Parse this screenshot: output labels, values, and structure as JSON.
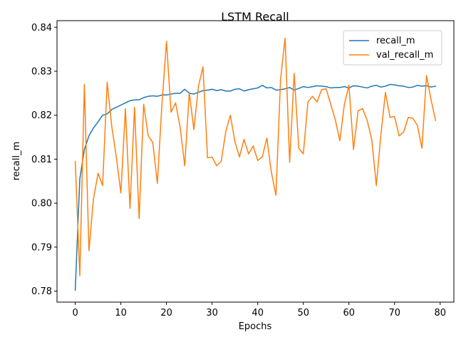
{
  "chart_data": {
    "type": "line",
    "title": "LSTM Recall",
    "xlabel": "Epochs",
    "ylabel": "recall_m",
    "xlim": [
      -4,
      83
    ],
    "ylim": [
      0.7775,
      0.8415
    ],
    "xticks": [
      0,
      10,
      20,
      30,
      40,
      50,
      60,
      70,
      80
    ],
    "yticks": [
      0.78,
      0.79,
      0.8,
      0.81,
      0.82,
      0.83,
      0.84
    ],
    "xtick_labels": [
      "0",
      "10",
      "20",
      "30",
      "40",
      "50",
      "60",
      "70",
      "80"
    ],
    "ytick_labels": [
      "0.78",
      "0.79",
      "0.80",
      "0.81",
      "0.82",
      "0.83",
      "0.84"
    ],
    "grid": false,
    "legend_position": "top-right",
    "series": [
      {
        "name": "recall_m",
        "color": "#1f77b4",
        "x": [
          0,
          1,
          2,
          3,
          4,
          5,
          6,
          7,
          8,
          9,
          10,
          11,
          12,
          13,
          14,
          15,
          16,
          17,
          18,
          19,
          20,
          21,
          22,
          23,
          24,
          25,
          26,
          27,
          28,
          29,
          30,
          31,
          32,
          33,
          34,
          35,
          36,
          37,
          38,
          39,
          40,
          41,
          42,
          43,
          44,
          45,
          46,
          47,
          48,
          49,
          50,
          51,
          52,
          53,
          54,
          55,
          56,
          57,
          58,
          59,
          60,
          61,
          62,
          63,
          64,
          65,
          66,
          67,
          68,
          69,
          70,
          71,
          72,
          73,
          74,
          75,
          76,
          77,
          78,
          79
        ],
        "values": [
          0.7802,
          0.8055,
          0.8122,
          0.8153,
          0.8171,
          0.8185,
          0.82,
          0.8203,
          0.8213,
          0.8218,
          0.8223,
          0.8228,
          0.8233,
          0.8235,
          0.8235,
          0.824,
          0.8243,
          0.8244,
          0.8243,
          0.8246,
          0.8246,
          0.8248,
          0.825,
          0.825,
          0.8259,
          0.825,
          0.8248,
          0.8252,
          0.8256,
          0.8257,
          0.8259,
          0.8256,
          0.8258,
          0.8255,
          0.8255,
          0.8259,
          0.826,
          0.8255,
          0.8258,
          0.826,
          0.8262,
          0.8268,
          0.8262,
          0.8263,
          0.8257,
          0.8258,
          0.826,
          0.8263,
          0.8257,
          0.8261,
          0.8265,
          0.8263,
          0.8265,
          0.8267,
          0.8266,
          0.8265,
          0.8262,
          0.8263,
          0.8263,
          0.8265,
          0.8262,
          0.8267,
          0.8266,
          0.8264,
          0.8262,
          0.8266,
          0.8268,
          0.8264,
          0.8266,
          0.827,
          0.8269,
          0.8267,
          0.8266,
          0.8263,
          0.8264,
          0.8268,
          0.8266,
          0.8267,
          0.8264,
          0.8266
        ]
      },
      {
        "name": "val_recall_m",
        "color": "#ff7f0e",
        "x": [
          0,
          1,
          2,
          3,
          4,
          5,
          6,
          7,
          8,
          9,
          10,
          11,
          12,
          13,
          14,
          15,
          16,
          17,
          18,
          19,
          20,
          21,
          22,
          23,
          24,
          25,
          26,
          27,
          28,
          29,
          30,
          31,
          32,
          33,
          34,
          35,
          36,
          37,
          38,
          39,
          40,
          41,
          42,
          43,
          44,
          45,
          46,
          47,
          48,
          49,
          50,
          51,
          52,
          53,
          54,
          55,
          56,
          57,
          58,
          59,
          60,
          61,
          62,
          63,
          64,
          65,
          66,
          67,
          68,
          69,
          70,
          71,
          72,
          73,
          74,
          75,
          76,
          77,
          78,
          79
        ],
        "values": [
          0.8095,
          0.7835,
          0.827,
          0.7892,
          0.801,
          0.8068,
          0.804,
          0.8275,
          0.8175,
          0.8105,
          0.8023,
          0.8215,
          0.7988,
          0.8218,
          0.7965,
          0.8225,
          0.8153,
          0.8138,
          0.8045,
          0.8225,
          0.8368,
          0.8207,
          0.8228,
          0.8172,
          0.8085,
          0.8252,
          0.8167,
          0.8265,
          0.831,
          0.8103,
          0.8105,
          0.8085,
          0.8095,
          0.8163,
          0.82,
          0.814,
          0.8105,
          0.8145,
          0.8112,
          0.813,
          0.8097,
          0.8105,
          0.8148,
          0.807,
          0.8018,
          0.828,
          0.8375,
          0.8093,
          0.8295,
          0.8125,
          0.8112,
          0.823,
          0.8243,
          0.823,
          0.8258,
          0.826,
          0.8225,
          0.819,
          0.8142,
          0.8225,
          0.8268,
          0.8122,
          0.821,
          0.8215,
          0.8188,
          0.8145,
          0.804,
          0.8155,
          0.8252,
          0.8195,
          0.8197,
          0.8153,
          0.8162,
          0.8195,
          0.8193,
          0.8177,
          0.8125,
          0.829,
          0.8235,
          0.8188
        ]
      }
    ]
  }
}
